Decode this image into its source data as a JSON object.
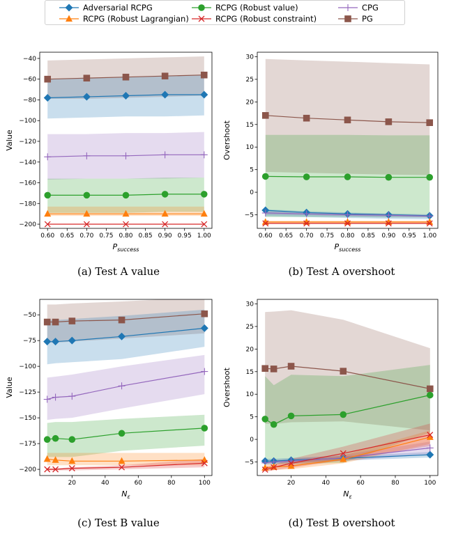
{
  "legend": [
    {
      "name": "Adversarial RCPG",
      "color": "#1f77b4",
      "marker": "D"
    },
    {
      "name": "RCPG (Robust value)",
      "color": "#2ca02c",
      "marker": "o"
    },
    {
      "name": "CPG",
      "color": "#9467bd",
      "marker": "+"
    },
    {
      "name": "RCPG (Robust Lagrangian)",
      "color": "#ff7f0e",
      "marker": "^"
    },
    {
      "name": "RCPG (Robust constraint)",
      "color": "#d62728",
      "marker": "x"
    },
    {
      "name": "PG",
      "color": "#8c564b",
      "marker": "s"
    }
  ],
  "captions": {
    "a": "(a) Test A value",
    "b": "(b) Test A overshoot",
    "c": "(c) Test B value",
    "d": "(d) Test B overshoot"
  },
  "chart_data": [
    {
      "id": "a",
      "type": "line",
      "xlabel": "P_success",
      "ylabel": "Value",
      "x": [
        0.6,
        0.7,
        0.8,
        0.9,
        1.0
      ],
      "xlim": [
        0.58,
        1.02
      ],
      "ylim": [
        -204,
        -34
      ],
      "xticks": [
        0.6,
        0.65,
        0.7,
        0.75,
        0.8,
        0.85,
        0.9,
        0.95,
        1.0
      ],
      "xtick_labels": [
        "0.60",
        "0.65",
        "0.70",
        "0.75",
        "0.80",
        "0.85",
        "0.90",
        "0.95",
        "1.00"
      ],
      "yticks": [
        -200,
        -180,
        -160,
        -140,
        -120,
        -100,
        -80,
        -60,
        -40
      ],
      "series": [
        {
          "name": "PG",
          "values": [
            -60,
            -59,
            -58,
            -57,
            -56
          ],
          "lower": [
            -79,
            -79,
            -78,
            -77,
            -76
          ],
          "upper": [
            -42,
            -41,
            -40,
            -39,
            -38
          ]
        },
        {
          "name": "Adversarial RCPG",
          "values": [
            -78,
            -77,
            -76,
            -75,
            -75
          ],
          "lower": [
            -98,
            -97,
            -96,
            -96,
            -95
          ],
          "upper": [
            -60,
            -59,
            -58,
            -57,
            -56
          ]
        },
        {
          "name": "CPG",
          "values": [
            -135,
            -134,
            -134,
            -133,
            -133
          ],
          "lower": [
            -157,
            -156,
            -156,
            -156,
            -155
          ],
          "upper": [
            -113,
            -113,
            -112,
            -112,
            -111
          ]
        },
        {
          "name": "RCPG (Robust value)",
          "values": [
            -172,
            -172,
            -172,
            -171,
            -171
          ],
          "lower": [
            -189,
            -189,
            -189,
            -188,
            -188
          ],
          "upper": [
            -156,
            -156,
            -156,
            -155,
            -155
          ]
        },
        {
          "name": "RCPG (Robust Lagrangian)",
          "values": [
            -190,
            -190,
            -190,
            -190,
            -190
          ],
          "lower": [
            -192,
            -192,
            -192,
            -192,
            -192
          ],
          "upper": [
            -183,
            -183,
            -183,
            -183,
            -183
          ]
        },
        {
          "name": "RCPG (Robust constraint)",
          "values": [
            -200,
            -200,
            -200,
            -200,
            -200
          ],
          "lower": [
            -200,
            -200,
            -200,
            -200,
            -200
          ],
          "upper": [
            -200,
            -200,
            -200,
            -200,
            -200
          ]
        }
      ]
    },
    {
      "id": "b",
      "type": "line",
      "xlabel": "P_success",
      "ylabel": "Overshoot",
      "x": [
        0.6,
        0.7,
        0.8,
        0.9,
        1.0
      ],
      "xlim": [
        0.58,
        1.02
      ],
      "ylim": [
        -8,
        31
      ],
      "xticks": [
        0.6,
        0.65,
        0.7,
        0.75,
        0.8,
        0.85,
        0.9,
        0.95,
        1.0
      ],
      "xtick_labels": [
        "0.60",
        "0.65",
        "0.70",
        "0.75",
        "0.80",
        "0.85",
        "0.90",
        "0.95",
        "1.00"
      ],
      "yticks": [
        -5,
        0,
        5,
        10,
        15,
        20,
        25,
        30
      ],
      "series": [
        {
          "name": "PG",
          "values": [
            17,
            16.4,
            16,
            15.6,
            15.4
          ],
          "lower": [
            4.5,
            4.3,
            4.1,
            3.9,
            3.8
          ],
          "upper": [
            29.5,
            29.2,
            28.9,
            28.6,
            28.3
          ]
        },
        {
          "name": "RCPG (Robust value)",
          "values": [
            3.5,
            3.4,
            3.4,
            3.3,
            3.3
          ],
          "lower": [
            -5.5,
            -5.5,
            -5.5,
            -5.6,
            -5.6
          ],
          "upper": [
            12.7,
            12.7,
            12.7,
            12.6,
            12.6
          ]
        },
        {
          "name": "Adversarial RCPG",
          "values": [
            -4,
            -4.5,
            -4.8,
            -5,
            -5.2
          ],
          "lower": [
            -5.3,
            -5.5,
            -5.7,
            -5.9,
            -6
          ],
          "upper": [
            -3.8,
            -4.2,
            -4.5,
            -4.7,
            -4.9
          ]
        },
        {
          "name": "CPG",
          "values": [
            -4.6,
            -4.8,
            -5,
            -5.1,
            -5.3
          ],
          "lower": [
            -5,
            -5.1,
            -5.3,
            -5.5,
            -5.6
          ],
          "upper": [
            -4.2,
            -4.4,
            -4.6,
            -4.8,
            -5
          ]
        },
        {
          "name": "RCPG (Robust Lagrangian)",
          "values": [
            -6.6,
            -6.6,
            -6.6,
            -6.6,
            -6.6
          ],
          "lower": [
            -6.9,
            -6.9,
            -6.9,
            -6.9,
            -6.9
          ],
          "upper": [
            -6.3,
            -6.3,
            -6.3,
            -6.3,
            -6.3
          ]
        },
        {
          "name": "RCPG (Robust constraint)",
          "values": [
            -6.9,
            -6.9,
            -6.9,
            -6.9,
            -6.9
          ],
          "lower": [
            -7,
            -7,
            -7,
            -7,
            -7
          ],
          "upper": [
            -6.8,
            -6.8,
            -6.8,
            -6.8,
            -6.8
          ]
        }
      ]
    },
    {
      "id": "c",
      "type": "line",
      "xlabel": "N_ε",
      "ylabel": "Value",
      "x": [
        5,
        10,
        20,
        50,
        100
      ],
      "xlim": [
        0.5,
        104.5
      ],
      "ylim": [
        -206,
        -35
      ],
      "xticks": [
        20,
        40,
        60,
        80,
        100
      ],
      "xtick_labels": [
        "20",
        "40",
        "60",
        "80",
        "100"
      ],
      "yticks": [
        -200,
        -175,
        -150,
        -125,
        -100,
        -75,
        -50
      ],
      "series": [
        {
          "name": "PG",
          "values": [
            -57,
            -57,
            -56,
            -55,
            -49
          ],
          "lower": [
            -77,
            -77,
            -76,
            -73,
            -68
          ],
          "upper": [
            -40,
            -40,
            -39,
            -37,
            -33
          ]
        },
        {
          "name": "Adversarial RCPG",
          "values": [
            -76,
            -76,
            -75,
            -71,
            -63
          ],
          "lower": [
            -98,
            -97,
            -96,
            -93,
            -81
          ],
          "upper": [
            -55,
            -55,
            -54,
            -51,
            -45
          ]
        },
        {
          "name": "CPG",
          "values": [
            -132,
            -130,
            -129,
            -119,
            -105
          ],
          "lower": [
            -152,
            -151,
            -150,
            -141,
            -127
          ],
          "upper": [
            -111,
            -110,
            -108,
            -100,
            -89
          ]
        },
        {
          "name": "RCPG (Robust value)",
          "values": [
            -171,
            -170,
            -171,
            -165,
            -160
          ],
          "lower": [
            -188,
            -188,
            -188,
            -182,
            -177
          ],
          "upper": [
            -155,
            -154,
            -154,
            -151,
            -147
          ]
        },
        {
          "name": "RCPG (Robust Lagrangian)",
          "values": [
            -190,
            -191,
            -192,
            -192,
            -191
          ],
          "lower": [
            -196,
            -196,
            -196,
            -196,
            -196
          ],
          "upper": [
            -184,
            -184,
            -184,
            -184,
            -184
          ]
        },
        {
          "name": "RCPG (Robust constraint)",
          "values": [
            -200,
            -200,
            -199,
            -198,
            -194
          ],
          "lower": [
            -201,
            -201,
            -201,
            -200,
            -198
          ],
          "upper": [
            -199,
            -199,
            -198,
            -196,
            -190
          ]
        }
      ]
    },
    {
      "id": "d",
      "type": "line",
      "xlabel": "N_ε",
      "ylabel": "Overshoot",
      "x": [
        5,
        10,
        20,
        50,
        100
      ],
      "xlim": [
        0.5,
        104.5
      ],
      "ylim": [
        -8,
        31
      ],
      "xticks": [
        20,
        40,
        60,
        80,
        100
      ],
      "xtick_labels": [
        "20",
        "40",
        "60",
        "80",
        "100"
      ],
      "yticks": [
        -5,
        0,
        5,
        10,
        15,
        20,
        25,
        30
      ],
      "series": [
        {
          "name": "PG",
          "values": [
            15.7,
            15.6,
            16.2,
            15.1,
            11.2
          ],
          "lower": [
            3.5,
            3.4,
            3.8,
            4,
            2
          ],
          "upper": [
            28.2,
            28.3,
            28.6,
            26.5,
            20.2
          ]
        },
        {
          "name": "RCPG (Robust value)",
          "values": [
            4.5,
            3.3,
            5.2,
            5.5,
            9.8
          ],
          "lower": [
            -5.5,
            -5.5,
            -5.5,
            -5.2,
            1.5
          ],
          "upper": [
            14,
            12,
            14.3,
            14,
            16.5
          ]
        },
        {
          "name": "Adversarial RCPG",
          "values": [
            -4.8,
            -4.8,
            -4.6,
            -4.2,
            -3.4
          ],
          "lower": [
            -5.3,
            -5.3,
            -5.1,
            -4.7,
            -4
          ],
          "upper": [
            -4.3,
            -4.3,
            -4.1,
            -3.7,
            -2.8
          ]
        },
        {
          "name": "CPG",
          "values": [
            -5.2,
            -5,
            -4.8,
            -4.1,
            -1.9
          ],
          "lower": [
            -5.7,
            -5.5,
            -5.3,
            -4.8,
            -3.3
          ],
          "upper": [
            -4.7,
            -4.5,
            -4.3,
            -3.4,
            -0.5
          ]
        },
        {
          "name": "RCPG (Robust Lagrangian)",
          "values": [
            -6.3,
            -6.1,
            -5.9,
            -4.4,
            0.5
          ],
          "lower": [
            -7,
            -6.8,
            -6.6,
            -5.3,
            -1
          ],
          "upper": [
            -5.6,
            -5.4,
            -5.2,
            -3.5,
            2
          ]
        },
        {
          "name": "RCPG (Robust constraint)",
          "values": [
            -6.7,
            -6.2,
            -5.3,
            -3.1,
            1
          ],
          "lower": [
            -7.2,
            -6.8,
            -6.3,
            -4.6,
            -1.5
          ],
          "upper": [
            -6.2,
            -5.6,
            -4.3,
            -1.6,
            3.5
          ]
        }
      ]
    }
  ]
}
